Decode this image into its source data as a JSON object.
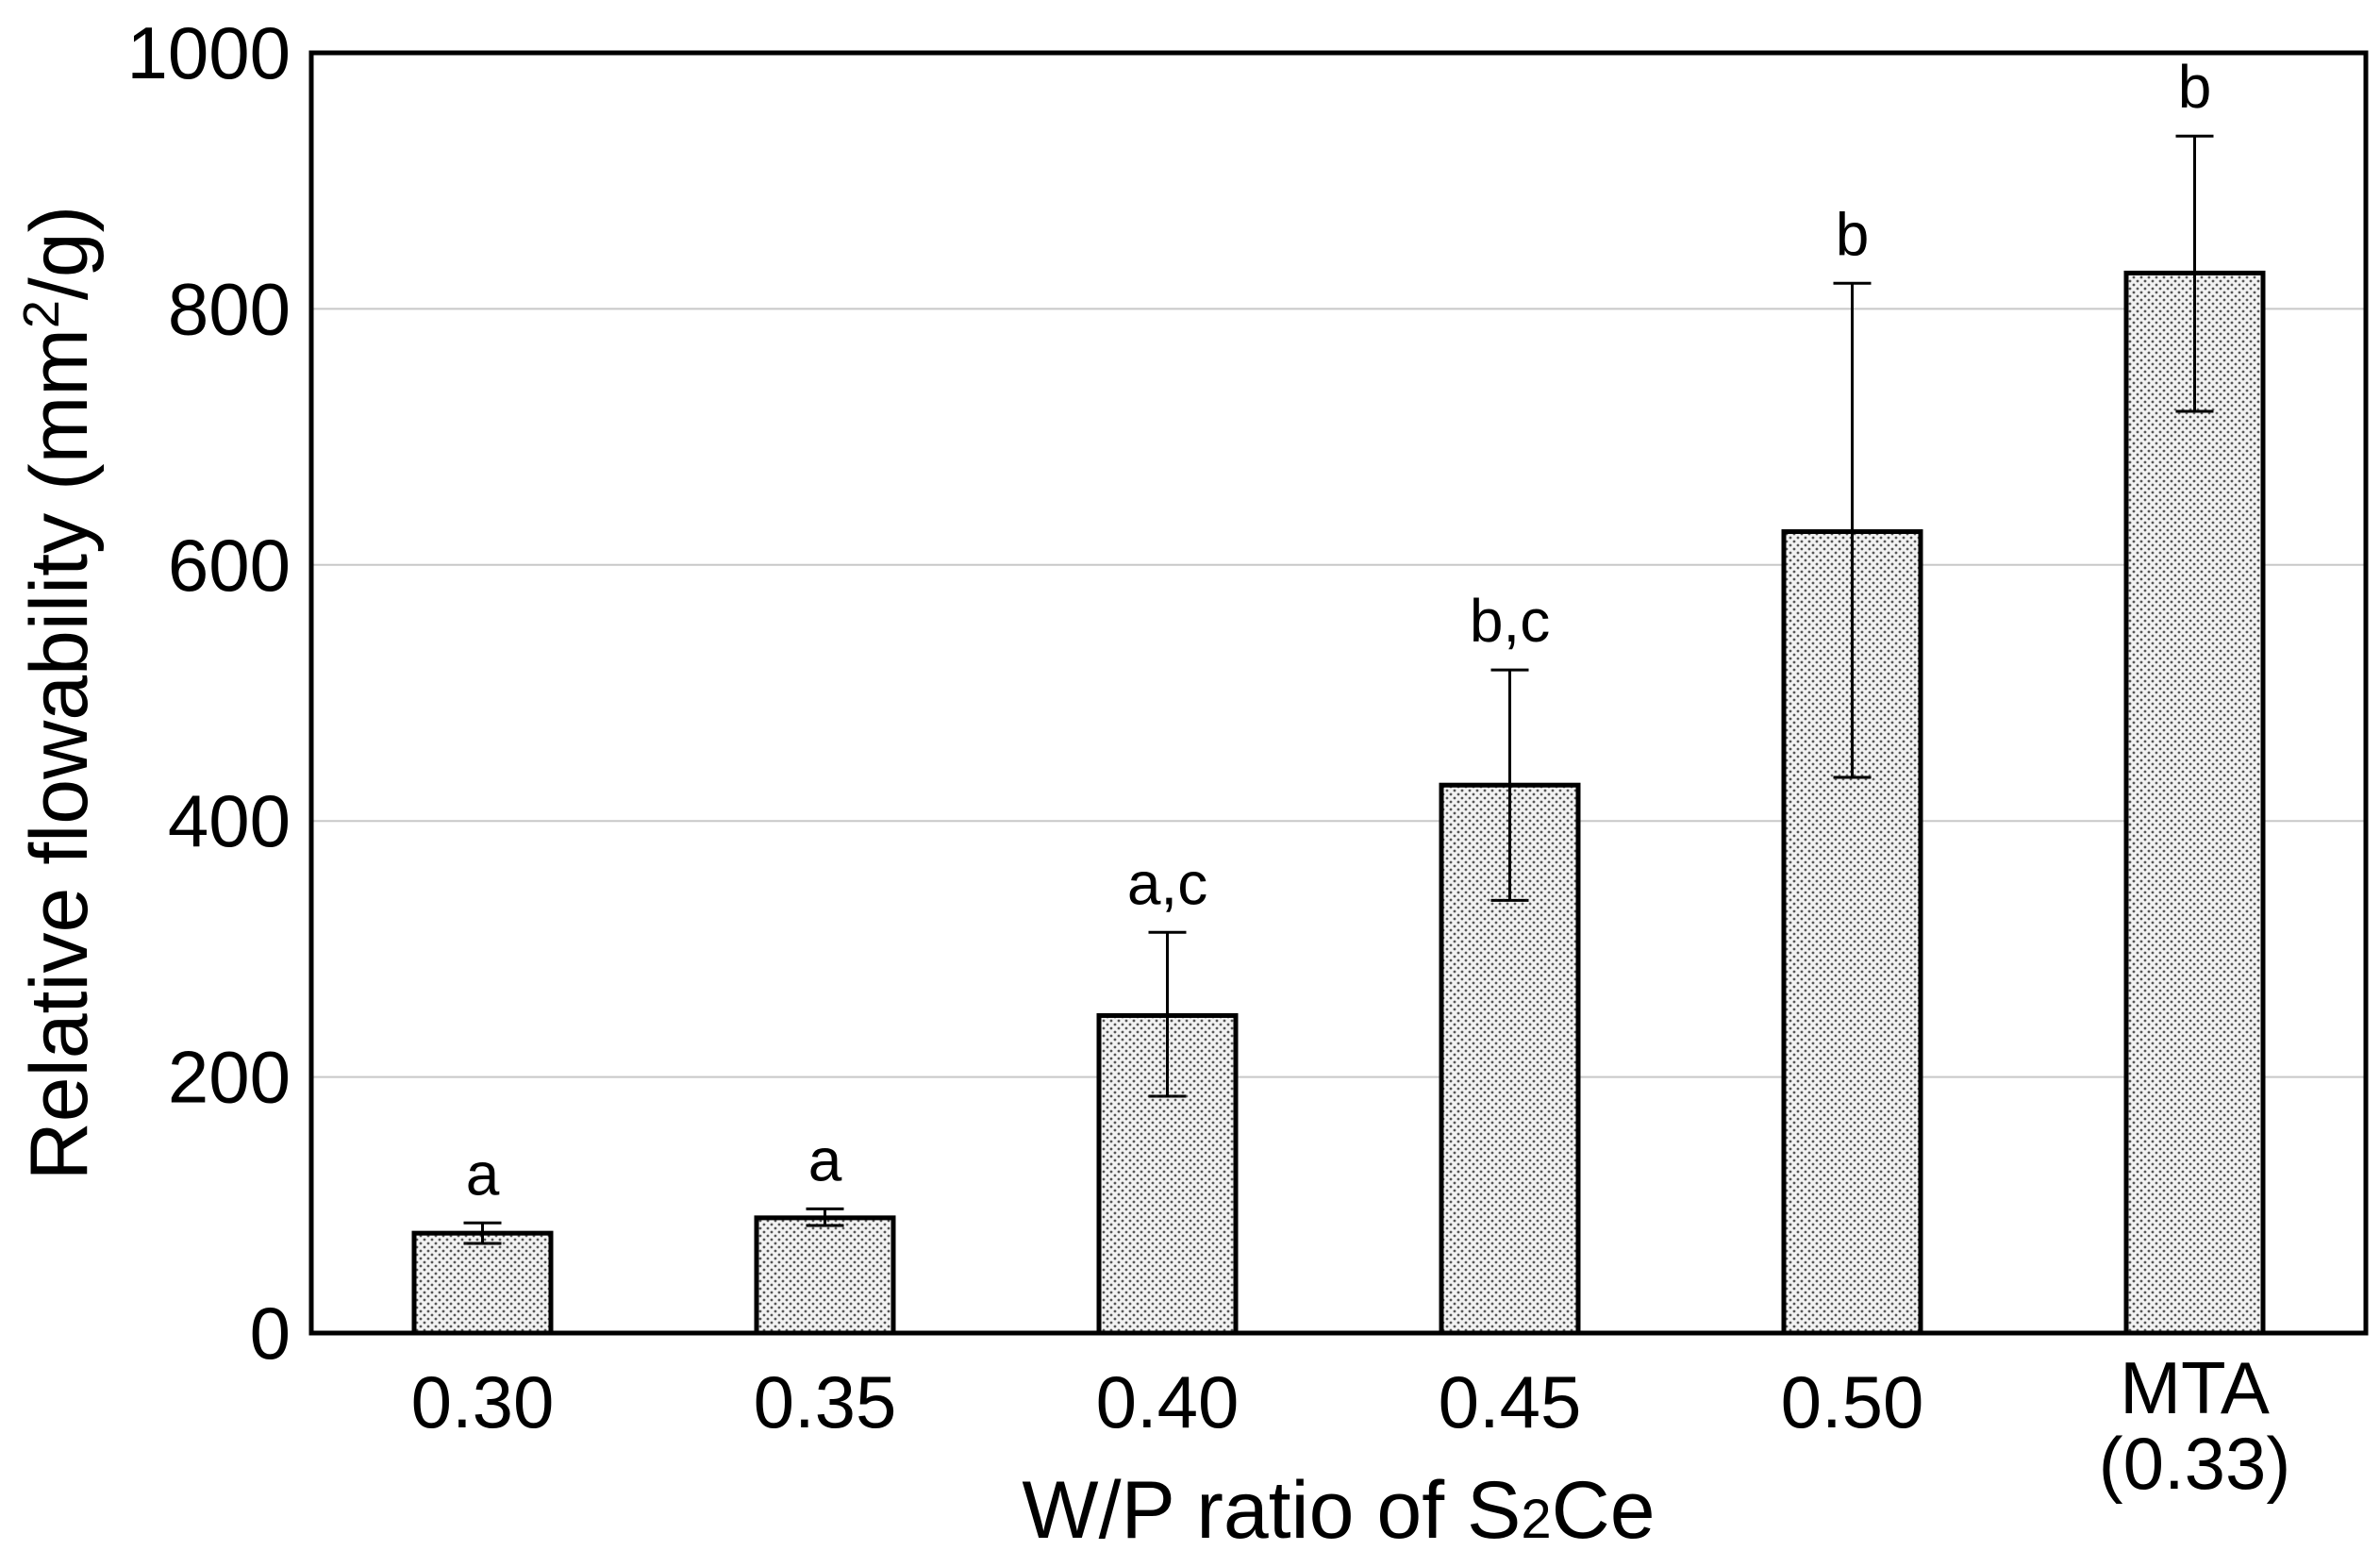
{
  "chart_data": {
    "type": "bar",
    "ylabel": "Relative flowability (mm",
    "ylabel_sup": "2",
    "ylabel_suffix": "/g)",
    "xlabel": "W/P ratio of S",
    "xlabel_sub": "2",
    "xlabel_suffix": "Ce",
    "categories": [
      {
        "label": "0.30",
        "label2": ""
      },
      {
        "label": "0.35",
        "label2": ""
      },
      {
        "label": "0.40",
        "label2": ""
      },
      {
        "label": "0.45",
        "label2": ""
      },
      {
        "label": "0.50",
        "label2": ""
      },
      {
        "label": "MTA",
        "label2": "(0.33)"
      }
    ],
    "values": [
      78,
      90,
      248,
      428,
      626,
      828
    ],
    "error_low": [
      70,
      84,
      185,
      338,
      434,
      720
    ],
    "error_high": [
      86,
      97,
      313,
      518,
      820,
      935
    ],
    "significance": [
      "a",
      "a",
      "a,c",
      "b,c",
      "b",
      "b"
    ],
    "ylim": [
      0,
      1000
    ],
    "yticks": [
      0,
      200,
      400,
      600,
      800,
      1000
    ],
    "grid": true,
    "bar_fill": "#e8e8e8",
    "bar_stroke": "#000000",
    "grid_color": "#c8c8c8"
  }
}
